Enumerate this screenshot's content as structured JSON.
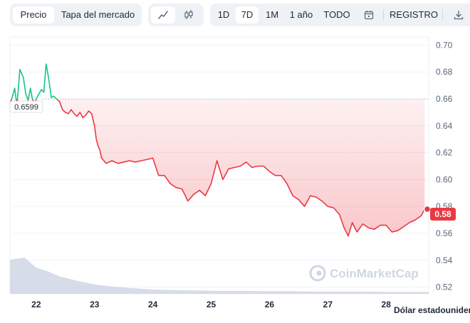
{
  "toolbar": {
    "view_tabs": [
      "Precio",
      "Tapa del mercado"
    ],
    "active_view": "Precio",
    "chart_style_icons": [
      "line-chart-icon",
      "candlestick-icon"
    ],
    "range_buttons": [
      "1D",
      "7D",
      "1M",
      "1 año",
      "TODO"
    ],
    "active_range": "7D",
    "calendar_icon": "calendar-icon",
    "log_label": "REGISTRO",
    "download_icon": "download-icon"
  },
  "chart": {
    "reference_price_label": "0.6599",
    "current_price_label": "0.58",
    "currency_label": "Dólar estadounidense",
    "watermark": "CoinMarketCap"
  },
  "colors": {
    "up": "#16c784",
    "down": "#ea3943",
    "volume": "#cfd6e4",
    "grid": "#eff2f5",
    "axis_text": "#58667e"
  },
  "chart_data": {
    "type": "line",
    "title": "",
    "xlabel": "",
    "ylabel": "",
    "ylim": [
      0.515,
      0.705
    ],
    "y_ticks": [
      "0.70",
      "0.68",
      "0.66",
      "0.64",
      "0.62",
      "0.60",
      "0.58",
      "0.56",
      "0.54",
      "0.52"
    ],
    "x_ticks": [
      "22",
      "23",
      "24",
      "25",
      "26",
      "27",
      "28"
    ],
    "xlim": [
      21.55,
      28.73
    ],
    "baseline": 0.6599,
    "grid": true,
    "series": [
      {
        "x": [
          21.55,
          21.6,
          21.63,
          21.67,
          21.72,
          21.78,
          21.82,
          21.86,
          21.9,
          21.93,
          21.97,
          22.0,
          22.05,
          22.09,
          22.13,
          22.17,
          22.21,
          22.26,
          22.3,
          22.35,
          22.4,
          22.45,
          22.5,
          22.55,
          22.6,
          22.65,
          22.7,
          22.75,
          22.8,
          22.85,
          22.9,
          22.95,
          23.0,
          23.03,
          23.06,
          23.09,
          23.12,
          23.16,
          23.2,
          23.3,
          23.4,
          23.5,
          23.6,
          23.7,
          23.8,
          23.9,
          24.0,
          24.1,
          24.2,
          24.3,
          24.4,
          24.5,
          24.6,
          24.7,
          24.8,
          24.9,
          25.0,
          25.1,
          25.2,
          25.3,
          25.4,
          25.5,
          25.6,
          25.7,
          25.8,
          25.9,
          26.0,
          26.1,
          26.2,
          26.3,
          26.4,
          26.5,
          26.6,
          26.7,
          26.8,
          26.9,
          27.0,
          27.1,
          27.2,
          27.28,
          27.35,
          27.42,
          27.5,
          27.6,
          27.7,
          27.8,
          27.9,
          28.0,
          28.1,
          28.2,
          28.3,
          28.4,
          28.5,
          28.6,
          28.66
        ],
        "y": [
          0.656,
          0.663,
          0.668,
          0.655,
          0.682,
          0.676,
          0.664,
          0.659,
          0.668,
          0.661,
          0.655,
          0.66,
          0.664,
          0.667,
          0.665,
          0.686,
          0.676,
          0.661,
          0.662,
          0.66,
          0.658,
          0.652,
          0.65,
          0.649,
          0.652,
          0.649,
          0.647,
          0.65,
          0.646,
          0.648,
          0.651,
          0.649,
          0.64,
          0.63,
          0.625,
          0.622,
          0.616,
          0.614,
          0.612,
          0.614,
          0.612,
          0.613,
          0.614,
          0.613,
          0.614,
          0.615,
          0.616,
          0.603,
          0.603,
          0.597,
          0.594,
          0.593,
          0.584,
          0.589,
          0.592,
          0.588,
          0.597,
          0.614,
          0.6,
          0.608,
          0.609,
          0.61,
          0.613,
          0.609,
          0.61,
          0.61,
          0.606,
          0.603,
          0.603,
          0.597,
          0.588,
          0.585,
          0.58,
          0.588,
          0.587,
          0.584,
          0.58,
          0.579,
          0.574,
          0.564,
          0.558,
          0.568,
          0.561,
          0.567,
          0.564,
          0.563,
          0.566,
          0.566,
          0.561,
          0.562,
          0.565,
          0.568,
          0.57,
          0.573,
          0.578
        ]
      }
    ],
    "volume": {
      "x": [
        21.55,
        21.8,
        22.0,
        22.2,
        22.4,
        22.7,
        23.0,
        23.3,
        23.6,
        24.0,
        24.4,
        24.8,
        25.2,
        25.6,
        26.0,
        26.4,
        26.8,
        27.2,
        27.6,
        28.0,
        28.4,
        28.73
      ],
      "values": [
        0.94,
        1.0,
        0.72,
        0.62,
        0.48,
        0.36,
        0.26,
        0.2,
        0.16,
        0.12,
        0.1,
        0.09,
        0.08,
        0.08,
        0.07,
        0.07,
        0.06,
        0.06,
        0.06,
        0.05,
        0.05,
        0.05
      ]
    }
  }
}
